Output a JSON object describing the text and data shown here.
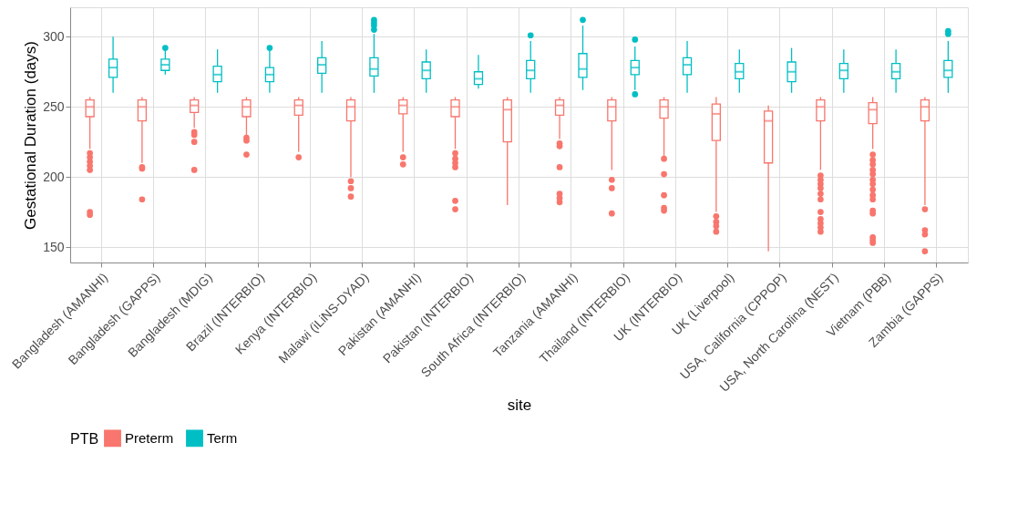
{
  "chart_data": {
    "type": "box",
    "xlabel": "site",
    "ylabel": "Gestational Duration (days)",
    "legend_title": "PTB",
    "legend": "bottom",
    "grid": true,
    "categories": [
      "Bangladesh (AMANHI)",
      "Bangladesh (GAPPS)",
      "Bangladesh (MDIG)",
      "Brazil (INTERBIO)",
      "Kenya (INTERBIO)",
      "Malawi (iLiNS-DYAD)",
      "Pakistan (AMANHI)",
      "Pakistan (INTERBIO)",
      "South Africa (INTERBIO)",
      "Tanzania (AMANHI)",
      "Thailand (INTERBIO)",
      "UK (INTERBIO)",
      "UK (Liverpool)",
      "USA, California (CPPOP)",
      "USA, North Carolina (NEST)",
      "Vietnam (PBB)",
      "Zambia (GAPPS)"
    ],
    "ylim": [
      139,
      321
    ],
    "yticks": [
      150,
      200,
      250,
      300
    ],
    "series": [
      {
        "name": "Preterm",
        "color": "#f8766d",
        "boxes": [
          {
            "low": 220,
            "q1": 243,
            "median": 250,
            "q3": 255,
            "high": 257,
            "outliers": [
              217,
              214,
              211,
              208,
              205,
              175,
              173
            ]
          },
          {
            "low": 210,
            "q1": 240,
            "median": 250,
            "q3": 255,
            "high": 257,
            "outliers": [
              207,
              206,
              184
            ]
          },
          {
            "low": 235,
            "q1": 246,
            "median": 251,
            "q3": 255,
            "high": 257,
            "outliers": [
              232,
              230,
              225,
              205
            ]
          },
          {
            "low": 230,
            "q1": 243,
            "median": 250,
            "q3": 255,
            "high": 257,
            "outliers": [
              228,
              226,
              216
            ]
          },
          {
            "low": 218,
            "q1": 244,
            "median": 251,
            "q3": 255,
            "high": 257,
            "outliers": [
              214
            ]
          },
          {
            "low": 200,
            "q1": 240,
            "median": 250,
            "q3": 255,
            "high": 257,
            "outliers": [
              197,
              192,
              186
            ]
          },
          {
            "low": 218,
            "q1": 245,
            "median": 251,
            "q3": 255,
            "high": 257,
            "outliers": [
              214,
              209
            ]
          },
          {
            "low": 220,
            "q1": 243,
            "median": 250,
            "q3": 255,
            "high": 257,
            "outliers": [
              217,
              213,
              210,
              207,
              183,
              177
            ]
          },
          {
            "low": 180,
            "q1": 225,
            "median": 248,
            "q3": 255,
            "high": 257
          },
          {
            "low": 227,
            "q1": 244,
            "median": 251,
            "q3": 255,
            "high": 257,
            "outliers": [
              224,
              222,
              207,
              188,
              185,
              182
            ]
          },
          {
            "low": 205,
            "q1": 240,
            "median": 250,
            "q3": 255,
            "high": 257,
            "outliers": [
              198,
              192,
              174
            ]
          },
          {
            "low": 215,
            "q1": 242,
            "median": 250,
            "q3": 255,
            "high": 257,
            "outliers": [
              213,
              202,
              187,
              178,
              176
            ]
          },
          {
            "low": 175,
            "q1": 226,
            "median": 245,
            "q3": 252,
            "high": 257,
            "outliers": [
              172,
              168,
              165,
              161
            ]
          },
          {
            "low": 147,
            "q1": 210,
            "median": 240,
            "q3": 247,
            "high": 251
          },
          {
            "low": 205,
            "q1": 240,
            "median": 250,
            "q3": 255,
            "high": 257,
            "outliers": [
              201,
              198,
              195,
              192,
              188,
              184,
              175,
              170,
              167,
              164,
              161
            ]
          },
          {
            "low": 220,
            "q1": 238,
            "median": 248,
            "q3": 253,
            "high": 257,
            "outliers": [
              216,
              212,
              209,
              205,
              202,
              198,
              195,
              191,
              187,
              184,
              176,
              174,
              157,
              155,
              153
            ]
          },
          {
            "low": 180,
            "q1": 240,
            "median": 250,
            "q3": 255,
            "high": 257,
            "outliers": [
              177,
              162,
              159,
              147
            ]
          }
        ]
      },
      {
        "name": "Term",
        "color": "#00bfc4",
        "boxes": [
          {
            "low": 260,
            "q1": 271,
            "median": 278,
            "q3": 284,
            "high": 300
          },
          {
            "low": 273,
            "q1": 276,
            "median": 280,
            "q3": 284,
            "high": 290,
            "outliers": [
              292
            ]
          },
          {
            "low": 260,
            "q1": 268,
            "median": 273,
            "q3": 279,
            "high": 291
          },
          {
            "low": 260,
            "q1": 268,
            "median": 273,
            "q3": 278,
            "high": 290,
            "outliers": [
              292
            ]
          },
          {
            "low": 260,
            "q1": 274,
            "median": 280,
            "q3": 285,
            "high": 297
          },
          {
            "low": 260,
            "q1": 272,
            "median": 277,
            "q3": 285,
            "high": 302,
            "outliers": [
              312,
              310,
              308,
              305
            ]
          },
          {
            "low": 260,
            "q1": 270,
            "median": 276,
            "q3": 282,
            "high": 291
          },
          {
            "low": 263,
            "q1": 266,
            "median": 270,
            "q3": 275,
            "high": 287
          },
          {
            "low": 260,
            "q1": 270,
            "median": 276,
            "q3": 283,
            "high": 297,
            "outliers": [
              301
            ]
          },
          {
            "low": 262,
            "q1": 271,
            "median": 277,
            "q3": 288,
            "high": 308,
            "outliers": [
              312
            ]
          },
          {
            "low": 262,
            "q1": 273,
            "median": 278,
            "q3": 283,
            "high": 293,
            "outliers": [
              298,
              259
            ]
          },
          {
            "low": 260,
            "q1": 273,
            "median": 280,
            "q3": 285,
            "high": 297
          },
          {
            "low": 260,
            "q1": 270,
            "median": 275,
            "q3": 281,
            "high": 291
          },
          {
            "low": 260,
            "q1": 268,
            "median": 275,
            "q3": 282,
            "high": 292
          },
          {
            "low": 260,
            "q1": 270,
            "median": 276,
            "q3": 281,
            "high": 291
          },
          {
            "low": 260,
            "q1": 270,
            "median": 275,
            "q3": 281,
            "high": 291
          },
          {
            "low": 260,
            "q1": 271,
            "median": 276,
            "q3": 283,
            "high": 297,
            "outliers": [
              304,
              302
            ]
          }
        ]
      }
    ]
  }
}
